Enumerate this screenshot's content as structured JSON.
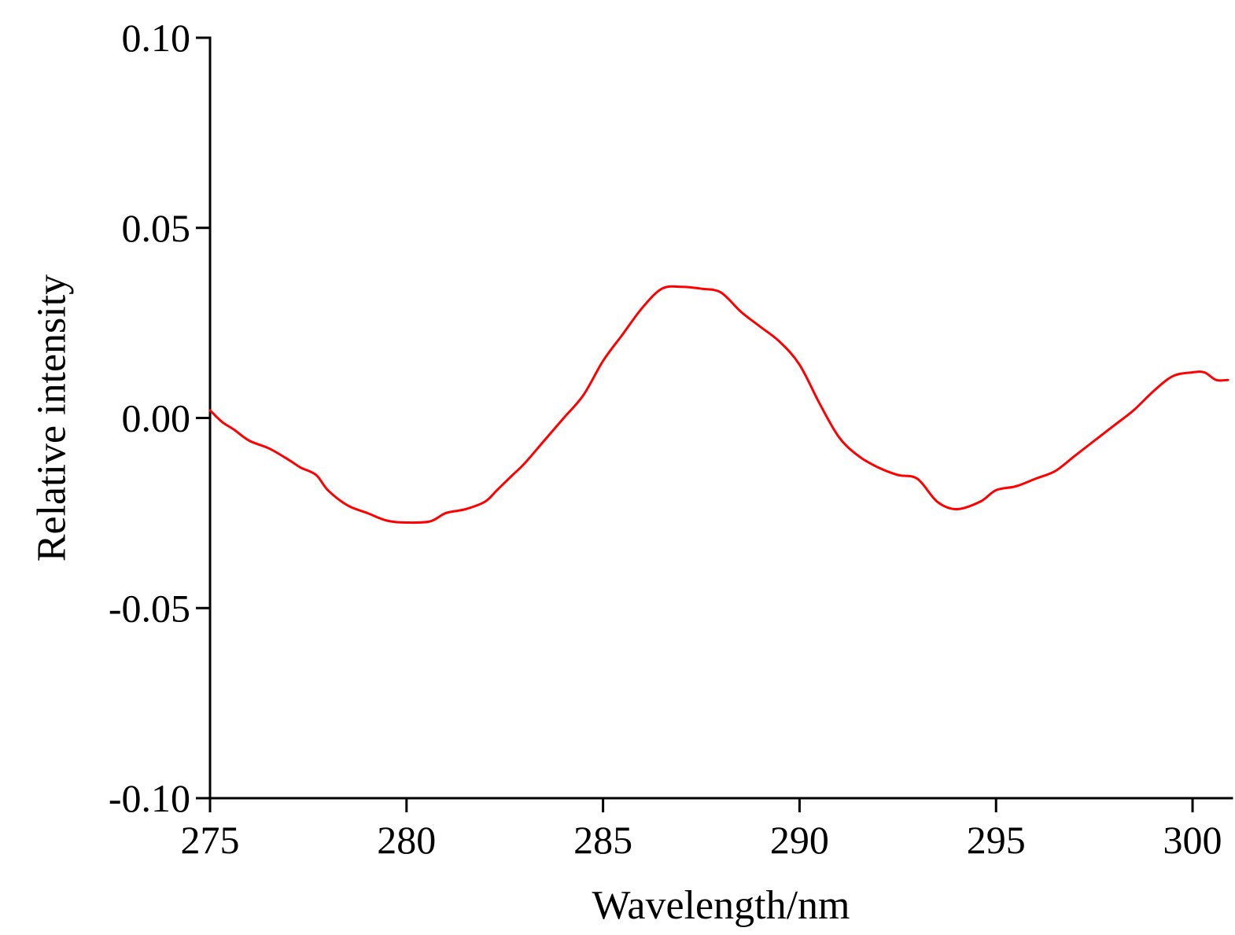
{
  "chart_data": {
    "type": "line",
    "xlabel": "Wavelength/nm",
    "ylabel": "Relative intensity",
    "xlim": [
      275,
      301
    ],
    "ylim": [
      -0.1,
      0.1
    ],
    "x_ticks": [
      275,
      280,
      285,
      290,
      295,
      300
    ],
    "x_tick_labels": [
      "275",
      "280",
      "285",
      "290",
      "295",
      "300"
    ],
    "y_ticks": [
      0.1,
      0.05,
      0.0,
      -0.05,
      -0.1
    ],
    "y_tick_labels": [
      "0.10",
      "0.05",
      "0.00",
      "-0.05",
      "-0.10"
    ],
    "grid": false,
    "legend": "none",
    "colors": {
      "series": "#ff0000",
      "axes": "#000000"
    },
    "series": [
      {
        "x": [
          275.0,
          275.3,
          275.6,
          276.0,
          276.5,
          277.0,
          277.3,
          277.7,
          278.0,
          278.5,
          279.0,
          279.5,
          280.0,
          280.6,
          281.0,
          281.5,
          282.0,
          282.3,
          282.7,
          283.0,
          283.5,
          284.0,
          284.5,
          285.0,
          285.5,
          286.0,
          286.5,
          287.0,
          287.5,
          288.0,
          288.5,
          289.0,
          289.5,
          290.0,
          290.5,
          291.0,
          291.5,
          292.0,
          292.5,
          293.0,
          293.5,
          294.0,
          294.6,
          295.0,
          295.5,
          296.0,
          296.5,
          297.0,
          297.5,
          298.0,
          298.5,
          299.0,
          299.5,
          300.0,
          300.3,
          300.6,
          300.9
        ],
        "y": [
          0.002,
          -0.001,
          -0.003,
          -0.006,
          -0.008,
          -0.011,
          -0.013,
          -0.015,
          -0.019,
          -0.023,
          -0.025,
          -0.027,
          -0.0275,
          -0.0272,
          -0.025,
          -0.024,
          -0.022,
          -0.019,
          -0.015,
          -0.012,
          -0.006,
          0.0,
          0.006,
          0.015,
          0.022,
          0.029,
          0.034,
          0.0345,
          0.034,
          0.033,
          0.028,
          0.024,
          0.02,
          0.014,
          0.004,
          -0.005,
          -0.01,
          -0.013,
          -0.015,
          -0.016,
          -0.022,
          -0.024,
          -0.022,
          -0.019,
          -0.018,
          -0.016,
          -0.014,
          -0.01,
          -0.006,
          -0.002,
          0.002,
          0.007,
          0.011,
          0.012,
          0.012,
          0.01,
          0.01
        ]
      }
    ]
  }
}
